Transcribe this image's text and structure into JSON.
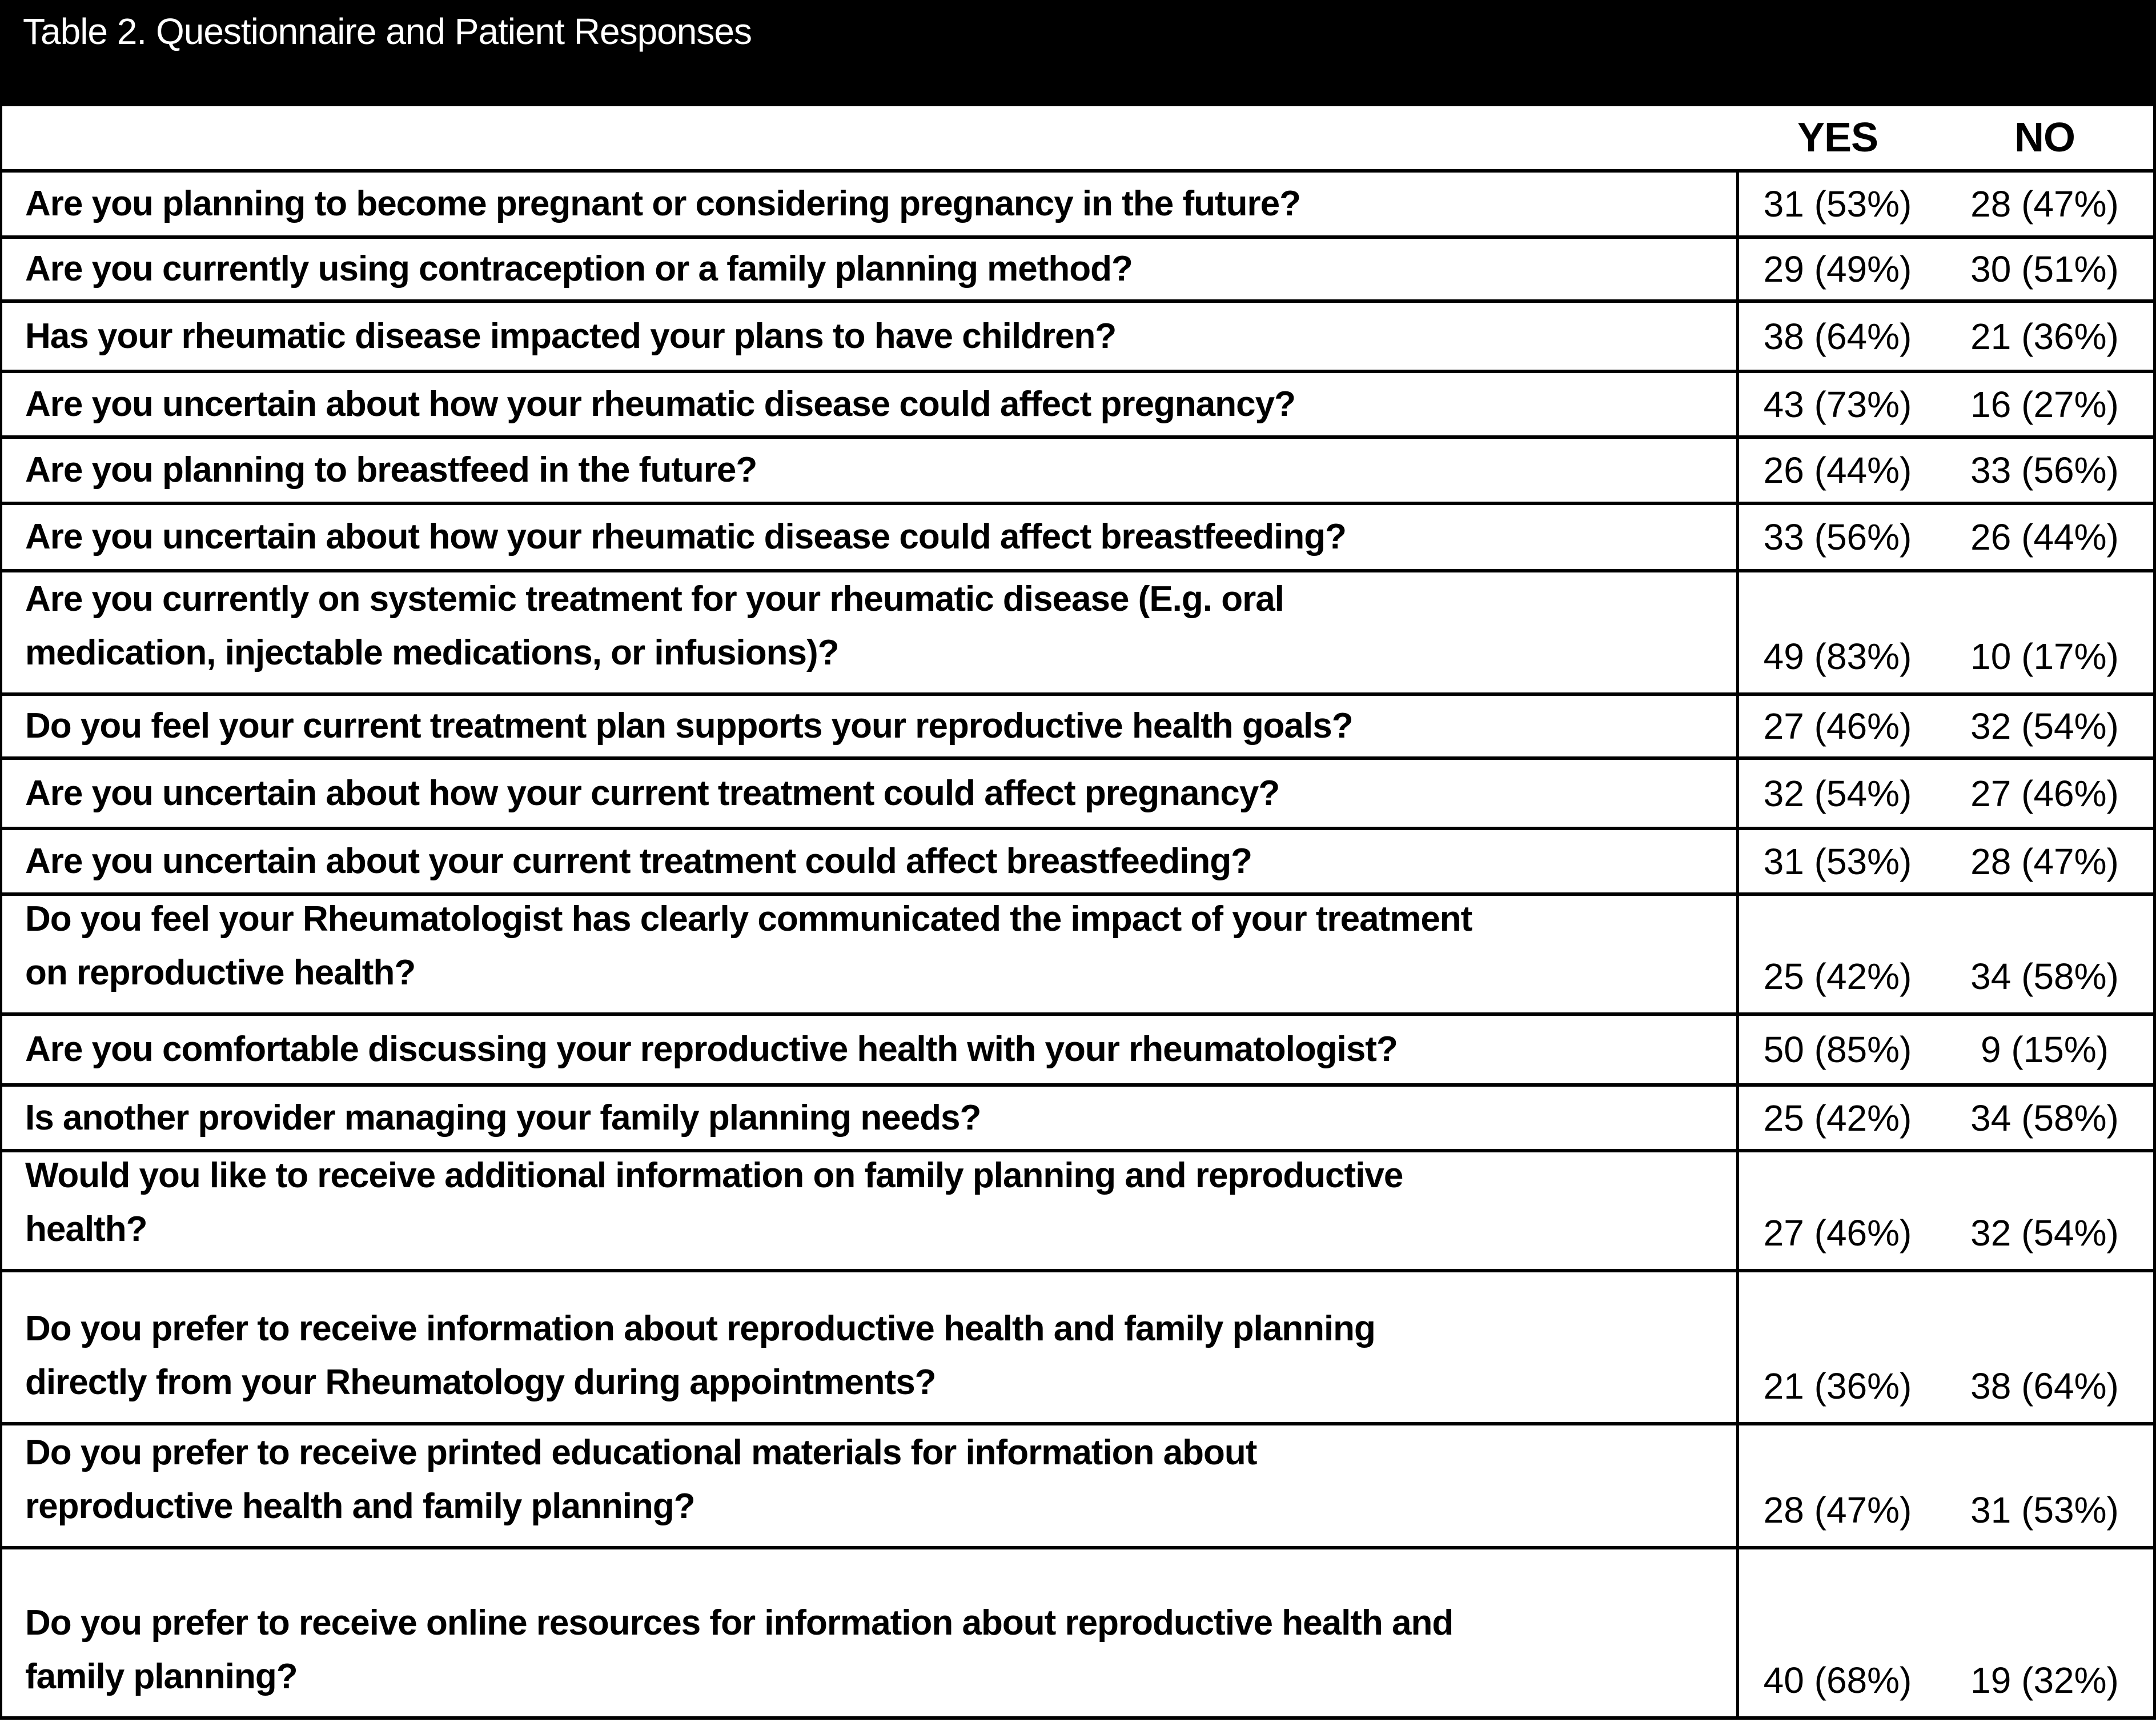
{
  "title": "Table 2. Questionnaire and Patient Responses",
  "colors": {
    "title_band_background": "#000000",
    "title_band_text": "#ffffff",
    "table_border": "#000000",
    "body_text": "#000000"
  },
  "header": {
    "yes": "YES",
    "no": "NO"
  },
  "rows": [
    {
      "question": "Are you planning to become pregnant or considering pregnancy in the future?",
      "yes": "31 (53%)",
      "no": "28 (47%)"
    },
    {
      "question": "Are you currently using contraception or a family planning method?",
      "yes": "29 (49%)",
      "no": "30 (51%)"
    },
    {
      "question": "Has your rheumatic disease impacted your plans to have children?",
      "yes": "38 (64%)",
      "no": "21 (36%)"
    },
    {
      "question": "Are you uncertain about how your rheumatic disease could affect pregnancy?",
      "yes": "43 (73%)",
      "no": "16 (27%)"
    },
    {
      "question": "Are you planning to breastfeed in the future?",
      "yes": "26 (44%)",
      "no": "33 (56%)"
    },
    {
      "question": "Are you uncertain about how your rheumatic disease could affect breastfeeding?",
      "yes": "33 (56%)",
      "no": "26 (44%)"
    },
    {
      "question": "Are you currently on systemic treatment for your rheumatic disease (E.g. oral\nmedication, injectable medications, or infusions)?",
      "yes": "49 (83%)",
      "no": "10 (17%)"
    },
    {
      "question": "Do you feel your current treatment plan supports your reproductive health goals?",
      "yes": "27 (46%)",
      "no": "32 (54%)"
    },
    {
      "question": "Are you uncertain about how your current treatment could affect pregnancy?",
      "yes": "32 (54%)",
      "no": "27 (46%)"
    },
    {
      "question": "Are you uncertain about your current treatment could affect breastfeeding?",
      "yes": "31 (53%)",
      "no": "28 (47%)"
    },
    {
      "question": "Do you feel your Rheumatologist has clearly communicated the impact of your treatment\non reproductive health?",
      "yes": "25 (42%)",
      "no": "34 (58%)"
    },
    {
      "question": "Are you comfortable discussing your reproductive health with your rheumatologist?",
      "yes": "50 (85%)",
      "no": "9 (15%)"
    },
    {
      "question": "Is another provider managing your family planning needs?",
      "yes": "25 (42%)",
      "no": "34 (58%)"
    },
    {
      "question": "Would you like to receive additional information on family planning and reproductive\nhealth?",
      "yes": "27 (46%)",
      "no": "32 (54%)"
    },
    {
      "question": "Do you prefer to receive information about reproductive health and family planning\ndirectly from your Rheumatology during appointments?",
      "yes": "21 (36%)",
      "no": "38 (64%)"
    },
    {
      "question": "Do you prefer to receive printed educational materials for information about\nreproductive health and family planning?",
      "yes": "28 (47%)",
      "no": "31 (53%)"
    },
    {
      "question": "Do you prefer to receive online resources for information about reproductive health and\nfamily planning?",
      "yes": "40 (68%)",
      "no": "19 (32%)"
    }
  ]
}
